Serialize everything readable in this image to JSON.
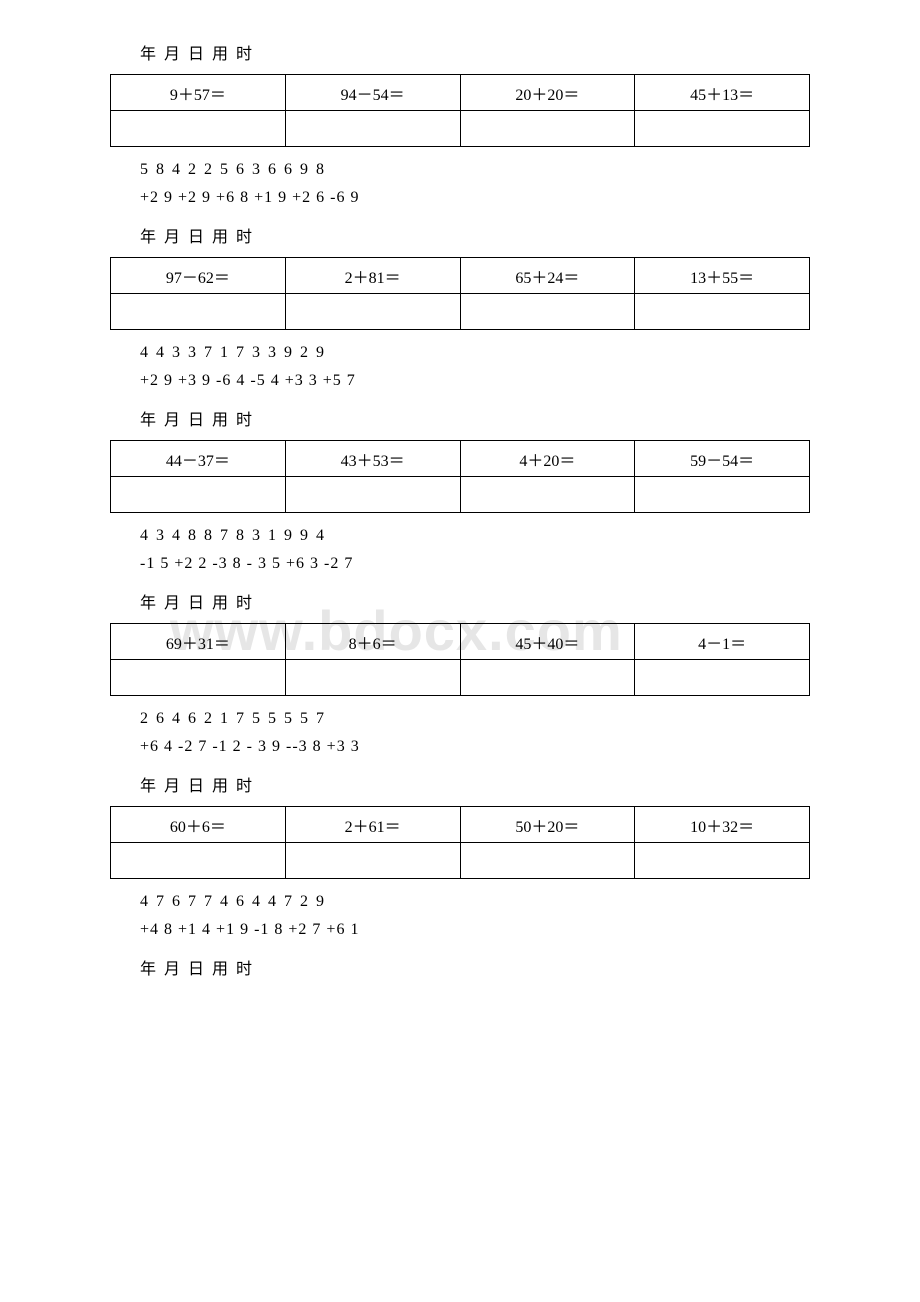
{
  "watermark": "www.bdocx.com",
  "date_label": "年 月 日 用 时",
  "sections": [
    {
      "problems": [
        "9＋57＝",
        "94－54＝",
        "20＋20＝",
        "45＋13＝"
      ],
      "num_line": "5 8 4 2 2 5 6 3 6 6 9 8",
      "op_line": "+2 9 +2 9 +6 8 +1 9 +2 6 -6 9"
    },
    {
      "problems": [
        "97－62＝",
        "2＋81＝",
        "65＋24＝",
        "13＋55＝"
      ],
      "num_line": "4 4 3 3 7 1 7 3 3 9 2 9",
      "op_line": "+2 9 +3 9 -6 4 -5 4 +3 3 +5 7"
    },
    {
      "problems": [
        "44－37＝",
        "43＋53＝",
        "4＋20＝",
        "59－54＝"
      ],
      "num_line": "4 3 4 8 8 7 8 3 1 9 9 4",
      "op_line": "-1 5 +2 2 -3 8 - 3 5 +6 3 -2 7"
    },
    {
      "problems": [
        "69＋31＝",
        "8＋6＝",
        "45＋40＝",
        "4－1＝"
      ],
      "num_line": "2 6 4 6 2 1 7 5 5 5 5 7",
      "op_line": "+6 4 -2 7 -1 2 - 3 9 --3 8 +3 3"
    },
    {
      "problems": [
        "60＋6＝",
        "2＋61＝",
        "50＋20＝",
        "10＋32＝"
      ],
      "num_line": "4 7 6 7 7 4 6 4 4 7 2 9",
      "op_line": "+4 8 +1 4 +1 9 -1 8 +2 7 +6 1"
    }
  ]
}
